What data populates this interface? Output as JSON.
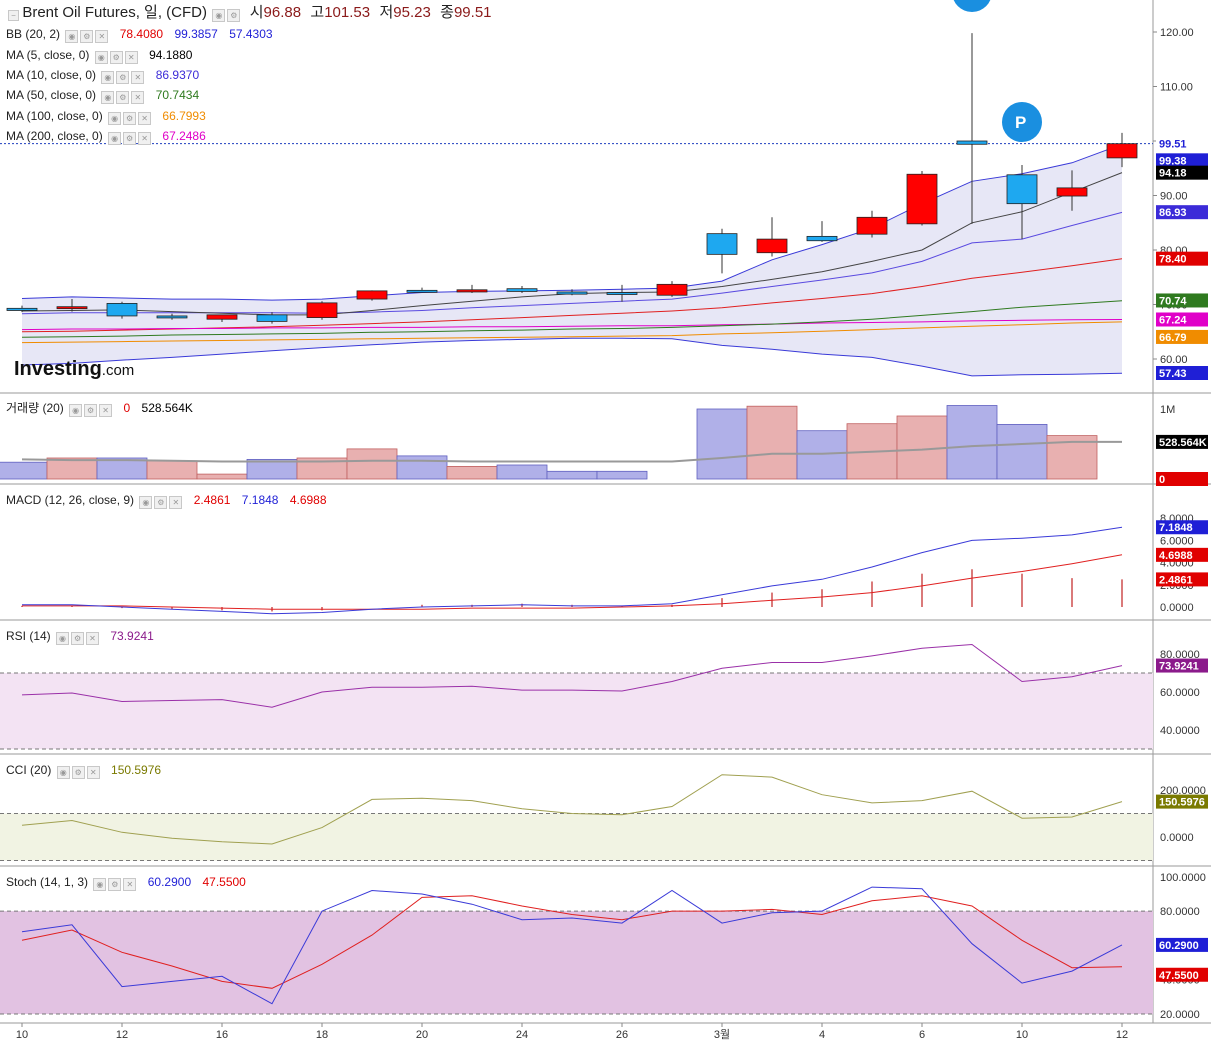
{
  "header": {
    "title": "Brent Oil Futures, 일, (CFD)",
    "ohlc": [
      {
        "label": "시",
        "value": "96.88"
      },
      {
        "label": "고",
        "value": "101.53"
      },
      {
        "label": "저",
        "value": "95.23"
      },
      {
        "label": "종",
        "value": "99.51"
      }
    ]
  },
  "legend": {
    "bb": {
      "name": "BB (20, 2)",
      "values": [
        "78.4080",
        "99.3857",
        "57.4303"
      ],
      "colors": [
        "#e00000",
        "#1f1fd6",
        "#1f1fd6"
      ]
    },
    "ma5": {
      "name": "MA (5, close, 0)",
      "value": "94.1880",
      "color": "#000000"
    },
    "ma10": {
      "name": "MA (10, close, 0)",
      "value": "86.9370",
      "color": "#3b2bd8"
    },
    "ma50": {
      "name": "MA (50, close, 0)",
      "value": "70.7434",
      "color": "#2f7a1f"
    },
    "ma100": {
      "name": "MA (100, close, 0)",
      "value": "66.7993",
      "color": "#f08c00"
    },
    "ma200": {
      "name": "MA (200, close, 0)",
      "value": "67.2486",
      "color": "#e000c8"
    },
    "volume": {
      "name": "거래량 (20)",
      "values": [
        "0",
        "528.564K"
      ]
    },
    "macd": {
      "name": "MACD (12, 26, close, 9)",
      "values": [
        "2.4861",
        "7.1848",
        "4.6988"
      ],
      "colors": [
        "#e00000",
        "#1f1fd6",
        "#e00000"
      ]
    },
    "rsi": {
      "name": "RSI (14)",
      "value": "73.9241",
      "color": "#8b1a8b"
    },
    "cci": {
      "name": "CCI (20)",
      "value": "150.5976",
      "color": "#7a7a00"
    },
    "stoch": {
      "name": "Stoch (14, 1, 3)",
      "values": [
        "60.2900",
        "47.5500"
      ],
      "colors": [
        "#1f1fd6",
        "#e00000"
      ]
    }
  },
  "logo": {
    "main": "Investing",
    "suffix": ".com"
  },
  "markers": [
    "P"
  ],
  "chart_data": {
    "type": "candlestick",
    "x_ticks": [
      "10",
      "12",
      "16",
      "18",
      "20",
      "24",
      "26",
      "3월",
      "4",
      "6",
      "10",
      "12"
    ],
    "candles": [
      {
        "o": 69.3,
        "h": 69.8,
        "l": 68.6,
        "c": 68.9
      },
      {
        "o": 69.3,
        "h": 71.0,
        "l": 68.7,
        "c": 69.6
      },
      {
        "o": 70.2,
        "h": 70.5,
        "l": 67.4,
        "c": 67.9
      },
      {
        "o": 67.9,
        "h": 68.3,
        "l": 67.2,
        "c": 67.6
      },
      {
        "o": 67.3,
        "h": 68.1,
        "l": 66.8,
        "c": 68.1
      },
      {
        "o": 68.1,
        "h": 68.6,
        "l": 66.5,
        "c": 66.9
      },
      {
        "o": 67.6,
        "h": 70.6,
        "l": 67.2,
        "c": 70.3
      },
      {
        "o": 71.0,
        "h": 72.6,
        "l": 70.7,
        "c": 72.5
      },
      {
        "o": 72.6,
        "h": 73.1,
        "l": 72.2,
        "c": 72.4
      },
      {
        "o": 72.3,
        "h": 73.6,
        "l": 72.1,
        "c": 72.7
      },
      {
        "o": 72.9,
        "h": 73.4,
        "l": 72.1,
        "c": 72.4
      },
      {
        "o": 72.3,
        "h": 72.8,
        "l": 71.7,
        "c": 71.9
      },
      {
        "o": 72.2,
        "h": 73.6,
        "l": 70.5,
        "c": 71.9
      },
      {
        "o": 71.7,
        "h": 74.3,
        "l": 71.4,
        "c": 73.7
      },
      {
        "o": 83.0,
        "h": 83.9,
        "l": 75.7,
        "c": 79.2
      },
      {
        "o": 79.5,
        "h": 86.0,
        "l": 78.8,
        "c": 82.0
      },
      {
        "o": 82.5,
        "h": 85.3,
        "l": 81.5,
        "c": 81.7
      },
      {
        "o": 82.9,
        "h": 87.2,
        "l": 82.3,
        "c": 86.0
      },
      {
        "o": 84.8,
        "h": 94.5,
        "l": 84.5,
        "c": 93.9
      },
      {
        "o": 100.0,
        "h": 119.8,
        "l": 84.8,
        "c": 99.4
      },
      {
        "o": 93.8,
        "h": 95.6,
        "l": 82.0,
        "c": 88.5
      },
      {
        "o": 89.9,
        "h": 94.6,
        "l": 87.2,
        "c": 91.4
      },
      {
        "o": 96.9,
        "h": 101.5,
        "l": 95.2,
        "c": 99.5
      }
    ],
    "price_axis": {
      "ticks": [
        "60.00",
        "70.00",
        "80.00",
        "90.00",
        "100.00",
        "110.00",
        "120.00"
      ],
      "last_price": "99.51"
    },
    "bb_upper": [
      71.1,
      71.4,
      71.2,
      71.0,
      71.0,
      70.8,
      71.0,
      71.6,
      72.2,
      72.4,
      72.5,
      72.6,
      72.8,
      73.0,
      74.3,
      78.2,
      81.0,
      84.0,
      88.5,
      92.6,
      94.0,
      96.0,
      99.4
    ],
    "bb_mid": [
      65.0,
      65.1,
      65.3,
      65.5,
      65.7,
      65.9,
      66.2,
      66.5,
      66.8,
      67.2,
      67.6,
      68.0,
      68.4,
      68.8,
      69.4,
      70.3,
      71.1,
      72.0,
      73.3,
      74.8,
      75.9,
      77.1,
      78.4
    ],
    "bb_lower": [
      58.9,
      59.2,
      59.8,
      60.3,
      60.9,
      61.5,
      62.1,
      62.6,
      63.1,
      63.4,
      63.6,
      63.8,
      63.8,
      63.7,
      62.5,
      61.8,
      60.9,
      60.3,
      58.7,
      56.9,
      57.1,
      57.2,
      57.4
    ],
    "ma5": [
      68.8,
      68.9,
      69.0,
      68.7,
      68.4,
      68.1,
      68.1,
      68.9,
      69.8,
      70.6,
      71.4,
      72.0,
      72.2,
      72.3,
      73.3,
      74.6,
      76.0,
      77.9,
      80.0,
      85.0,
      87.0,
      90.6,
      94.2
    ],
    "ma10": [
      68.3,
      68.5,
      68.5,
      68.5,
      68.5,
      68.5,
      68.4,
      68.6,
      68.9,
      69.4,
      69.8,
      70.2,
      70.6,
      71.0,
      72.1,
      73.3,
      74.5,
      75.8,
      77.9,
      81.3,
      82.0,
      84.5,
      86.9
    ],
    "ma50": [
      64.0,
      64.1,
      64.2,
      64.4,
      64.5,
      64.6,
      64.7,
      64.9,
      65.0,
      65.2,
      65.3,
      65.5,
      65.6,
      65.8,
      66.1,
      66.4,
      66.8,
      67.3,
      68.0,
      68.7,
      69.5,
      70.1,
      70.7
    ],
    "ma100": [
      63.0,
      63.1,
      63.2,
      63.3,
      63.4,
      63.5,
      63.6,
      63.7,
      63.8,
      63.9,
      64.0,
      64.1,
      64.2,
      64.3,
      64.6,
      64.8,
      65.1,
      65.4,
      65.7,
      66.0,
      66.3,
      66.6,
      66.8
    ],
    "ma200": [
      65.4,
      65.5,
      65.5,
      65.6,
      65.6,
      65.7,
      65.7,
      65.8,
      65.8,
      65.9,
      65.9,
      66.0,
      66.1,
      66.1,
      66.3,
      66.4,
      66.6,
      66.7,
      66.8,
      67.0,
      67.1,
      67.2,
      67.25
    ],
    "volume": {
      "values": [
        0.24,
        0.3,
        0.3,
        0.26,
        0.07,
        0.28,
        0.3,
        0.43,
        0.33,
        0.18,
        0.2,
        0.11,
        0.11,
        0.0,
        1.0,
        1.04,
        0.69,
        0.79,
        0.9,
        1.05,
        0.78,
        0.62,
        0.0
      ],
      "up": [
        false,
        true,
        false,
        true,
        true,
        false,
        true,
        true,
        false,
        true,
        false,
        false,
        false,
        true,
        false,
        true,
        false,
        true,
        true,
        false,
        false,
        true,
        true
      ],
      "ma": [
        0.28,
        0.27,
        0.27,
        0.26,
        0.25,
        0.25,
        0.25,
        0.26,
        0.26,
        0.25,
        0.25,
        0.25,
        0.25,
        0.25,
        0.3,
        0.36,
        0.36,
        0.39,
        0.42,
        0.47,
        0.5,
        0.53,
        0.53
      ],
      "axis": "1M"
    },
    "macd": {
      "macd": [
        0.2,
        0.2,
        0.0,
        -0.2,
        -0.4,
        -0.6,
        -0.5,
        -0.2,
        0.0,
        0.1,
        0.2,
        0.1,
        0.1,
        0.3,
        1.1,
        1.9,
        2.5,
        3.6,
        4.9,
        6.0,
        6.2,
        6.5,
        7.18
      ],
      "signal": [
        0.1,
        0.1,
        0.1,
        0.0,
        -0.1,
        -0.2,
        -0.2,
        -0.2,
        -0.2,
        -0.1,
        -0.1,
        -0.1,
        0.0,
        0.1,
        0.3,
        0.6,
        0.9,
        1.3,
        1.9,
        2.6,
        3.2,
        3.9,
        4.7
      ],
      "hist": [
        0.1,
        0.1,
        -0.1,
        -0.2,
        -0.3,
        -0.4,
        -0.3,
        0.0,
        0.2,
        0.2,
        0.3,
        0.2,
        0.1,
        0.2,
        0.8,
        1.3,
        1.6,
        2.3,
        3.0,
        3.4,
        3.0,
        2.6,
        2.49
      ],
      "ticks": [
        "0.0000",
        "2.0000",
        "4.0000",
        "6.0000",
        "8.0000"
      ]
    },
    "rsi": {
      "values": [
        58.5,
        59.5,
        55.0,
        55.5,
        56.0,
        52.0,
        60.0,
        62.5,
        62.5,
        63.0,
        61.0,
        61.0,
        60.5,
        65.5,
        72.5,
        75.5,
        75.5,
        79.0,
        83.0,
        85.0,
        65.5,
        68.0,
        73.92
      ],
      "ticks": [
        "40.0000",
        "60.0000",
        "80.0000"
      ]
    },
    "cci": {
      "values": [
        50,
        70,
        20,
        -5,
        -20,
        -30,
        40,
        160,
        165,
        155,
        120,
        100,
        95,
        130,
        265,
        255,
        180,
        145,
        155,
        195,
        80,
        85,
        150.6
      ],
      "ticks": [
        "0.0000",
        "200.0000"
      ]
    },
    "stoch": {
      "k": [
        68,
        72,
        36,
        39,
        42,
        26,
        80,
        92,
        90,
        84,
        75,
        76,
        73,
        92,
        73,
        79,
        80,
        94,
        93,
        61,
        38,
        45,
        60.29
      ],
      "d": [
        63,
        69,
        56,
        48,
        39,
        35,
        49,
        66,
        88,
        89,
        83,
        78,
        75,
        80,
        80,
        81,
        78,
        86,
        89,
        83,
        63,
        47,
        47.55
      ],
      "ticks": [
        "20.0000",
        "40.0000",
        "60.0000",
        "80.0000",
        "100.0000"
      ]
    }
  }
}
